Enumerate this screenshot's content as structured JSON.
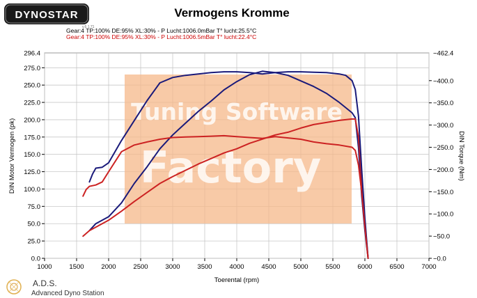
{
  "brand": {
    "logo": "DYNOSTAR",
    "version_tag": "v.6.1.71"
  },
  "footer": {
    "line1": "A.D.S.",
    "line2": "Advanced Dyno Station"
  },
  "watermark": {
    "line1": "Tuning Software",
    "line2": "Factory",
    "color": "#f5b88a"
  },
  "chart_data": {
    "type": "line",
    "title": "Vermogens Kromme",
    "legend": [
      {
        "text": "Gear:4 TP:100% DE:95% XL:30%   - P Lucht:1006.0mBar T° lucht:25.5°C",
        "color": "#000000"
      },
      {
        "text": "Gear:4 TP:100% DE:95% XL:30%   - P Lucht:1006.5mBar T° lucht:22.4°C",
        "color": "#cc0000"
      }
    ],
    "xlabel": "Toerental (rpm)",
    "ylabel": "DIN Motor Vermogen (pk)",
    "y2label": "DIN Torque (Nm)",
    "xlim": [
      1000,
      7000
    ],
    "ylim": [
      0,
      296.4
    ],
    "y2lim": [
      0,
      462.4
    ],
    "x_ticks": [
      "1000",
      "1500",
      "2000",
      "2500",
      "3000",
      "3500",
      "4000",
      "4500",
      "5000",
      "5500",
      "6000",
      "6500",
      "7000"
    ],
    "y_ticks": [
      "0.0",
      "25.0",
      "50.0",
      "75.0",
      "100.0",
      "125.0",
      "150.0",
      "175.0",
      "200.0",
      "225.0",
      "250.0",
      "275.0"
    ],
    "y_top_label": "296.4",
    "y2_ticks": [
      "0.0",
      "50.0",
      "100.0",
      "150.0",
      "200.0",
      "250.0",
      "300.0",
      "350.0",
      "400.0"
    ],
    "y2_top_label": "462.4",
    "grid": true,
    "series": [
      {
        "name": "Gear:4 TP:100% DE:95% XL:30% - P Lucht:1006.0mBar T° lucht:25.5°C",
        "quantity": "power",
        "axis": "left",
        "color": "#1a1a7a",
        "x": [
          1700,
          1800,
          1900,
          2000,
          2200,
          2400,
          2600,
          2800,
          3000,
          3200,
          3400,
          3600,
          3800,
          4000,
          4200,
          4400,
          4600,
          4800,
          5000,
          5200,
          5400,
          5600,
          5800,
          5850,
          5900,
          5950,
          6000,
          6050
        ],
        "values": [
          40,
          50,
          55,
          60,
          80,
          108,
          132,
          158,
          178,
          195,
          212,
          227,
          243,
          255,
          265,
          270,
          268,
          264,
          256,
          248,
          238,
          225,
          210,
          203,
          160,
          90,
          40,
          0
        ]
      },
      {
        "name": "Gear:4 TP:100% DE:95% XL:30% - P Lucht:1006.5mBar T° lucht:22.4°C",
        "quantity": "power",
        "axis": "left",
        "color": "#cc2222",
        "x": [
          1600,
          1700,
          1800,
          1900,
          2000,
          2200,
          2400,
          2600,
          2800,
          3000,
          3200,
          3400,
          3600,
          3800,
          4000,
          4200,
          4400,
          4600,
          4800,
          5000,
          5200,
          5400,
          5600,
          5800,
          5850,
          5900,
          5950,
          6000,
          6050
        ],
        "values": [
          32,
          40,
          45,
          50,
          55,
          68,
          82,
          95,
          108,
          118,
          127,
          136,
          144,
          152,
          158,
          166,
          172,
          178,
          182,
          188,
          193,
          196,
          199,
          201,
          201,
          175,
          110,
          50,
          0
        ]
      },
      {
        "name": "Gear:4 TP:100% DE:95% XL:30% - P Lucht:1006.0mBar T° lucht:25.5°C",
        "quantity": "torque",
        "axis": "right",
        "color": "#1a1a7a",
        "x": [
          1700,
          1750,
          1800,
          1900,
          2000,
          2200,
          2400,
          2600,
          2800,
          3000,
          3200,
          3400,
          3600,
          3800,
          4000,
          4200,
          4400,
          4600,
          4800,
          5000,
          5200,
          5400,
          5600,
          5700,
          5800,
          5850,
          5900,
          5950,
          6000,
          6050
        ],
        "values": [
          172,
          190,
          203,
          205,
          215,
          265,
          310,
          355,
          395,
          407,
          412,
          415,
          418,
          420,
          420,
          418,
          415,
          418,
          420,
          420,
          419,
          418,
          415,
          412,
          400,
          380,
          320,
          200,
          90,
          0
        ]
      },
      {
        "name": "Gear:4 TP:100% DE:95% XL:30% - P Lucht:1006.5mBar T° lucht:22.4°C",
        "quantity": "torque",
        "axis": "right",
        "color": "#cc2222",
        "x": [
          1600,
          1650,
          1700,
          1800,
          1900,
          2000,
          2200,
          2400,
          2600,
          2800,
          3000,
          3200,
          3400,
          3600,
          3800,
          4000,
          4200,
          4400,
          4600,
          4800,
          5000,
          5200,
          5400,
          5600,
          5800,
          5850,
          5900,
          5950,
          6000,
          6050
        ],
        "values": [
          140,
          155,
          162,
          165,
          172,
          195,
          240,
          255,
          262,
          268,
          272,
          273,
          274,
          275,
          276,
          274,
          272,
          270,
          274,
          271,
          268,
          262,
          258,
          255,
          250,
          243,
          210,
          150,
          70,
          0
        ]
      }
    ]
  }
}
